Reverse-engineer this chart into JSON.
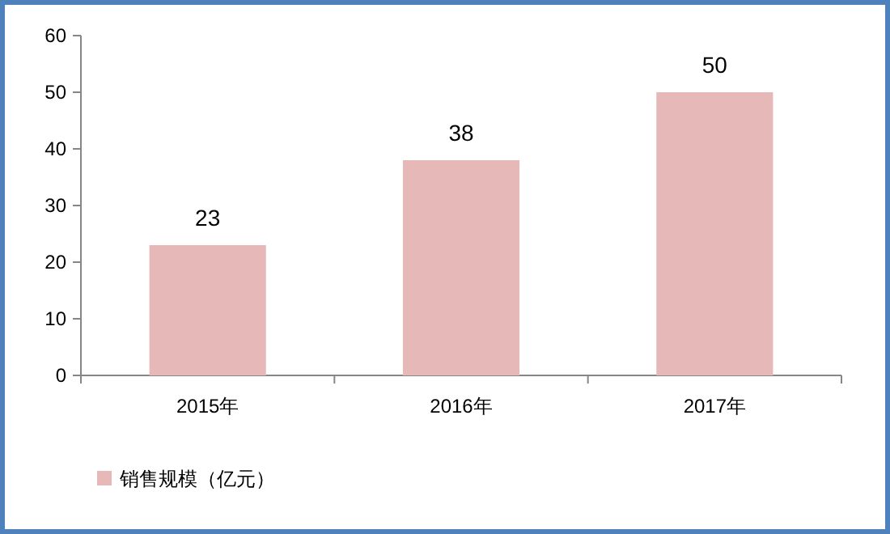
{
  "chart_data": {
    "type": "bar",
    "categories": [
      "2015年",
      "2016年",
      "2017年"
    ],
    "series": [
      {
        "name": "销售规模（亿元）",
        "color": "#e6b9b8",
        "values": [
          23,
          38,
          50
        ]
      }
    ],
    "ylim": [
      0,
      60
    ],
    "yticks": [
      0,
      10,
      20,
      30,
      40,
      50,
      60
    ],
    "data_labels": true,
    "legend": "bottom left",
    "grid": false
  }
}
